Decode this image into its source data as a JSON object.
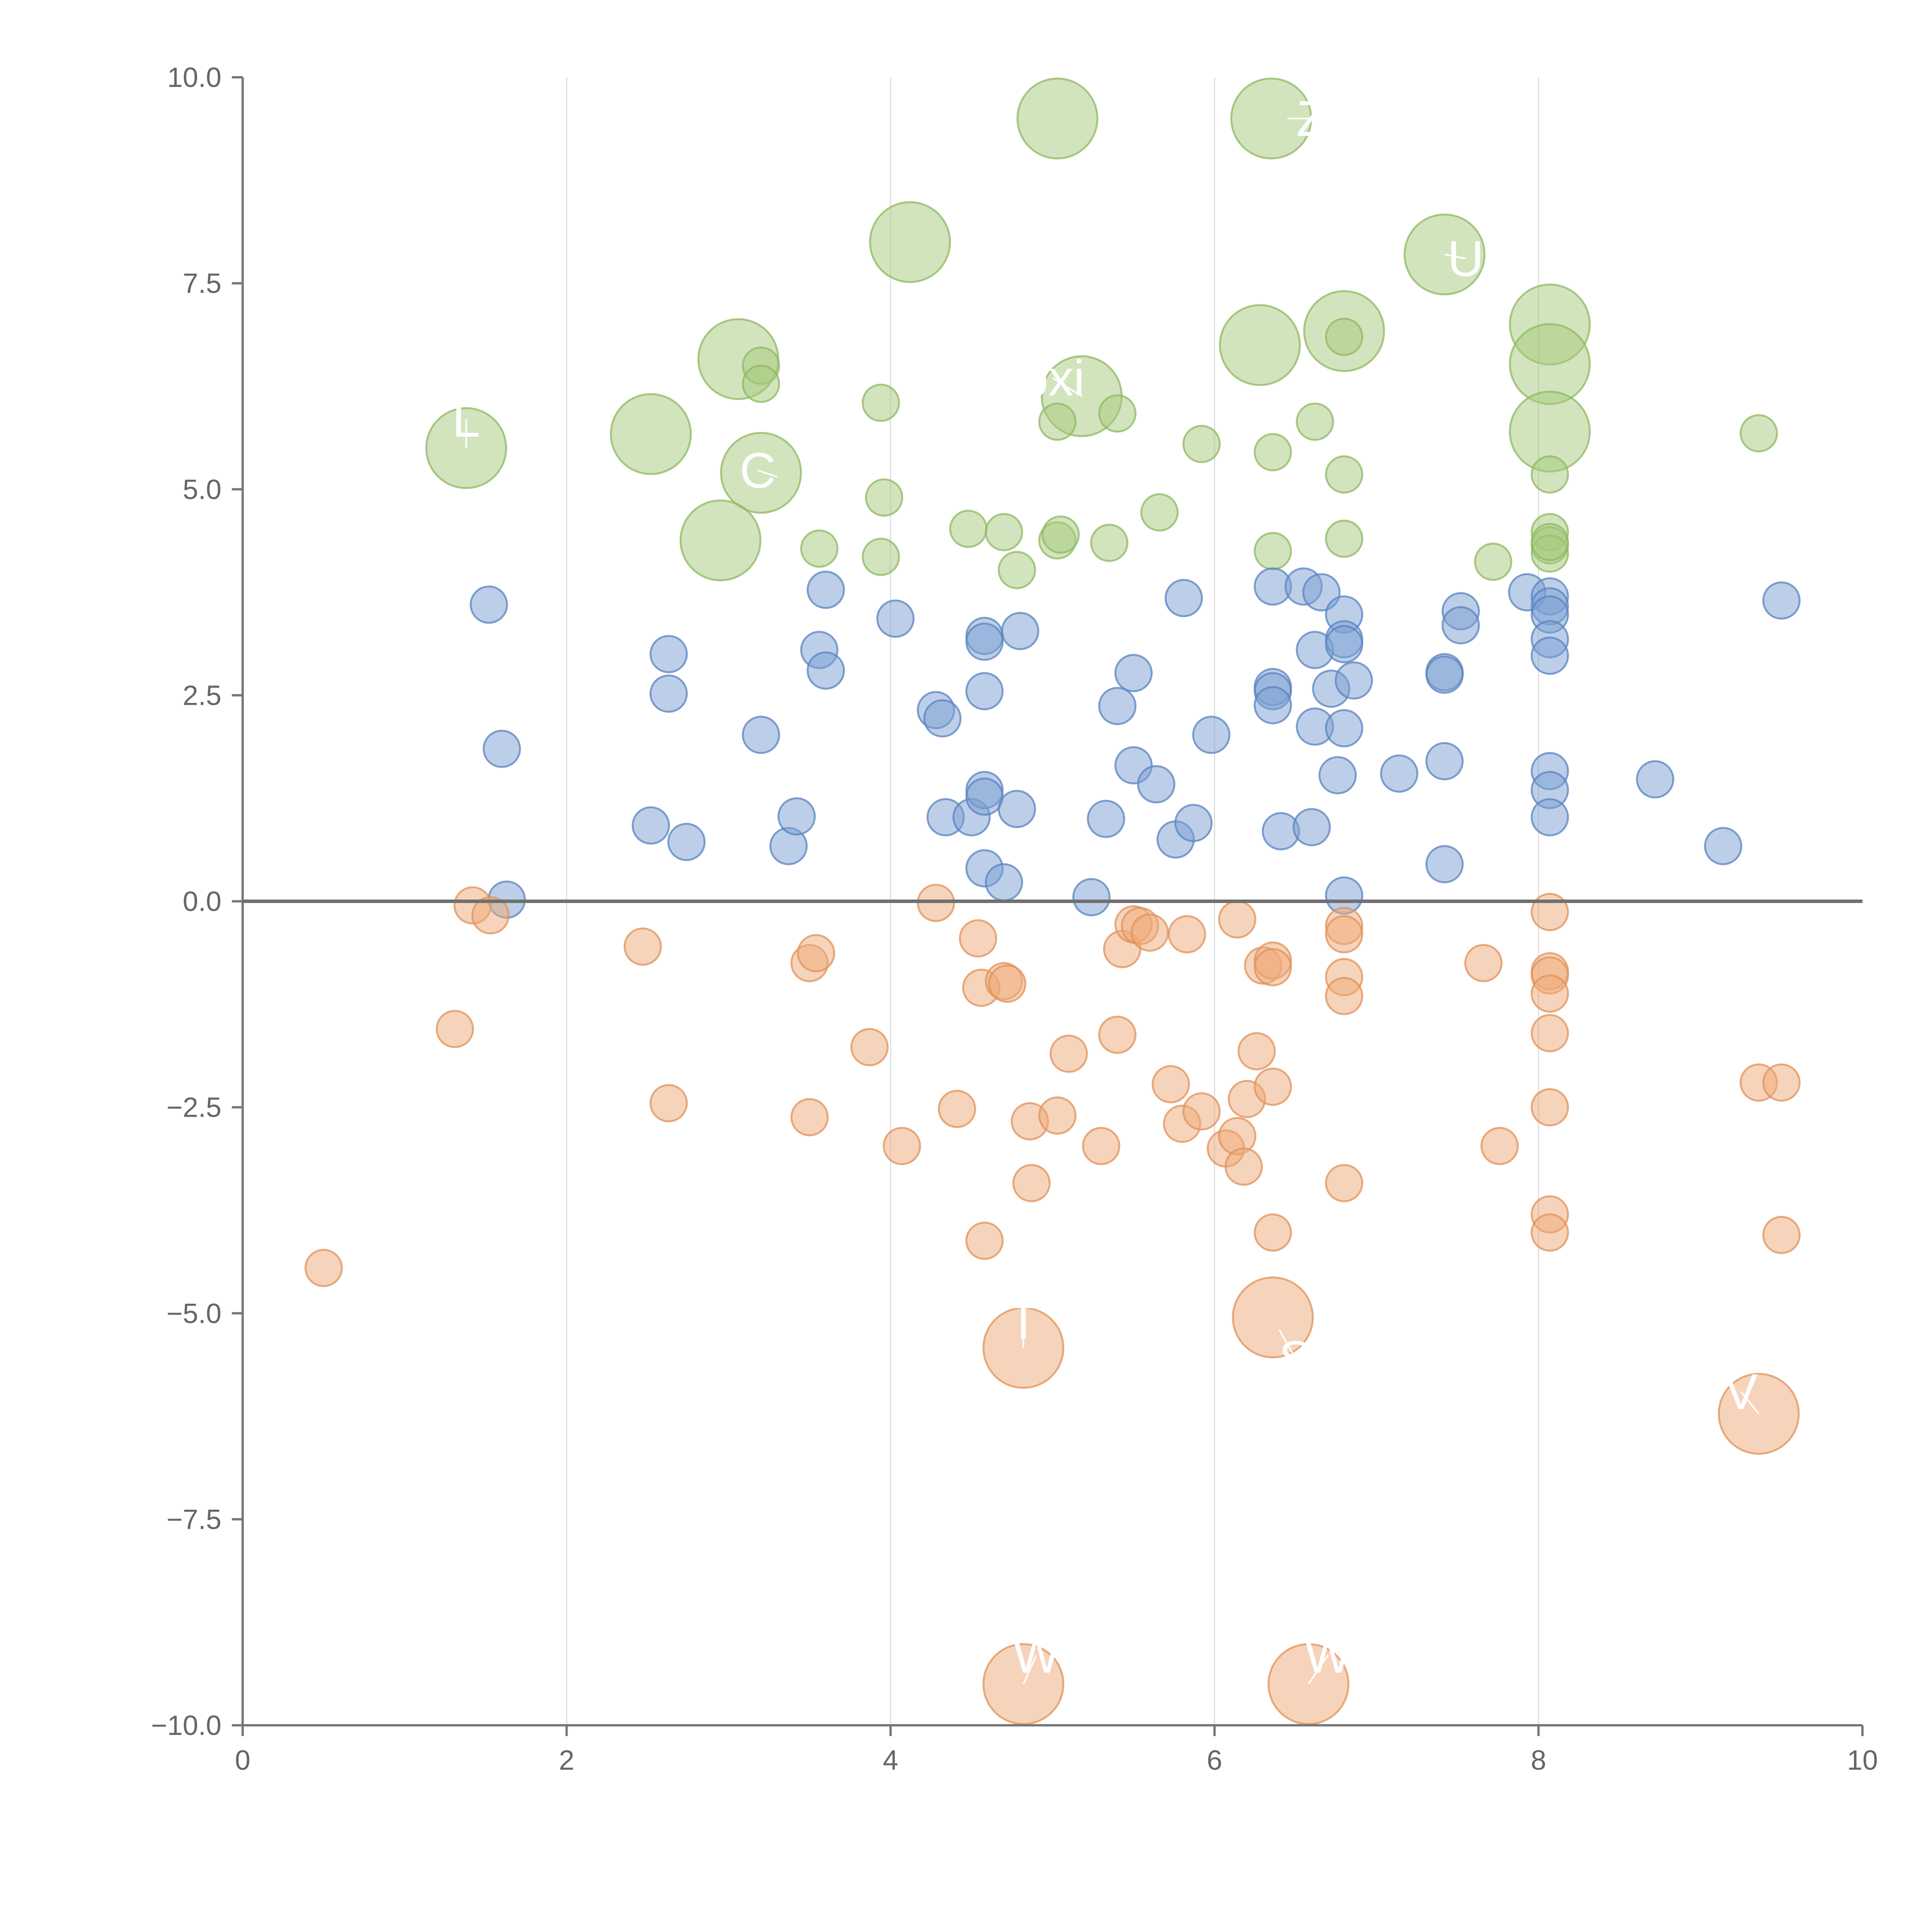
{
  "chart_data": {
    "type": "scatter",
    "title": "",
    "xlabel": "",
    "ylabel": "",
    "xlim": [
      0,
      10
    ],
    "ylim": [
      -10,
      10
    ],
    "grid": {
      "x": true,
      "y": false
    },
    "x_ticks": [
      0,
      2,
      4,
      6,
      8,
      10
    ],
    "x_tick_labels": [
      "0",
      "2",
      "4",
      "6",
      "8",
      "10"
    ],
    "y_ticks": [
      -10,
      -7.5,
      -5,
      -2.5,
      0,
      2.5,
      5,
      7.5,
      10
    ],
    "y_tick_labels": [
      "−10.0",
      "−7.5",
      "−5.0",
      "−2.5",
      "0.0",
      "2.5",
      "5.0",
      "7.5",
      "10.0"
    ],
    "zero_line": 0,
    "colors": {
      "green": "#a6c97c",
      "blue": "#7b9fd2",
      "orange": "#eea978",
      "green_stroke": "#8fb862",
      "blue_stroke": "#5a83c0",
      "orange_stroke": "#e0915a"
    },
    "series": [
      {
        "name": "green",
        "color": "#a6c97c",
        "points": [
          [
            5.03,
            9.5,
            2.2
          ],
          [
            6.35,
            9.5,
            2.2
          ],
          [
            4.12,
            8.0,
            2.2
          ],
          [
            7.42,
            7.85,
            2.2
          ],
          [
            6.8,
            6.92,
            2.2
          ],
          [
            8.07,
            7.0,
            2.2
          ],
          [
            6.28,
            6.75,
            2.2
          ],
          [
            8.07,
            6.52,
            2.2
          ],
          [
            3.06,
            6.58,
            2.2
          ],
          [
            5.18,
            6.13,
            2.2
          ],
          [
            2.52,
            5.67,
            2.2
          ],
          [
            8.07,
            5.7,
            2.2
          ],
          [
            1.38,
            5.5,
            2.2
          ],
          [
            3.2,
            5.2,
            2.2
          ],
          [
            2.95,
            4.38,
            2.2
          ],
          [
            3.2,
            6.5,
            1.0
          ],
          [
            3.2,
            6.28,
            1.0
          ],
          [
            3.94,
            6.05,
            1.0
          ],
          [
            5.03,
            5.82,
            1.0
          ],
          [
            5.4,
            5.92,
            1.0
          ],
          [
            6.62,
            5.82,
            1.0
          ],
          [
            5.92,
            5.55,
            1.0
          ],
          [
            6.36,
            5.45,
            1.0
          ],
          [
            6.8,
            5.18,
            1.0
          ],
          [
            8.07,
            5.18,
            1.0
          ],
          [
            9.36,
            5.68,
            1.0
          ],
          [
            3.96,
            4.9,
            1.0
          ],
          [
            4.78,
            4.02,
            1.0
          ],
          [
            5.66,
            4.72,
            1.0
          ],
          [
            4.48,
            4.52,
            1.0
          ],
          [
            4.7,
            4.48,
            1.0
          ],
          [
            5.03,
            4.38,
            1.0
          ],
          [
            5.05,
            4.45,
            1.0
          ],
          [
            5.35,
            4.35,
            1.0
          ],
          [
            3.56,
            4.28,
            1.0
          ],
          [
            3.94,
            4.18,
            1.0
          ],
          [
            6.36,
            4.25,
            1.0
          ],
          [
            6.8,
            4.4,
            1.0
          ],
          [
            7.72,
            4.12,
            1.0
          ],
          [
            8.07,
            4.48,
            1.0
          ],
          [
            8.07,
            4.32,
            1.0
          ],
          [
            8.07,
            4.22,
            1.0
          ],
          [
            8.07,
            4.36,
            1.0
          ],
          [
            6.8,
            6.85,
            1.0
          ]
        ]
      },
      {
        "name": "blue",
        "color": "#7b9fd2",
        "points": [
          [
            1.52,
            3.6,
            1.0
          ],
          [
            1.6,
            1.85,
            1.0
          ],
          [
            1.63,
            0.02,
            1.0
          ],
          [
            2.52,
            0.92,
            1.0
          ],
          [
            2.63,
            3.0,
            1.0
          ],
          [
            2.63,
            2.52,
            1.0
          ],
          [
            2.74,
            0.72,
            1.0
          ],
          [
            3.2,
            2.02,
            1.0
          ],
          [
            3.37,
            0.67,
            1.0
          ],
          [
            3.42,
            1.03,
            1.0
          ],
          [
            3.56,
            3.05,
            1.0
          ],
          [
            3.6,
            3.78,
            1.0
          ],
          [
            3.6,
            2.8,
            1.0
          ],
          [
            4.03,
            3.43,
            1.0
          ],
          [
            4.28,
            2.32,
            1.0
          ],
          [
            4.32,
            2.22,
            1.0
          ],
          [
            4.34,
            1.02,
            1.0
          ],
          [
            4.5,
            1.02,
            1.0
          ],
          [
            4.58,
            3.22,
            1.0
          ],
          [
            4.58,
            3.15,
            1.0
          ],
          [
            4.58,
            2.55,
            1.0
          ],
          [
            4.58,
            1.35,
            1.0
          ],
          [
            4.58,
            1.27,
            1.0
          ],
          [
            4.58,
            0.4,
            1.0
          ],
          [
            4.7,
            0.23,
            1.0
          ],
          [
            4.78,
            1.12,
            1.0
          ],
          [
            4.8,
            3.28,
            1.0
          ],
          [
            5.24,
            0.05,
            1.0
          ],
          [
            5.33,
            1.0,
            1.0
          ],
          [
            5.4,
            2.37,
            1.0
          ],
          [
            5.5,
            2.77,
            1.0
          ],
          [
            5.5,
            1.65,
            1.0
          ],
          [
            5.64,
            1.42,
            1.0
          ],
          [
            5.76,
            0.75,
            1.0
          ],
          [
            5.81,
            3.68,
            1.0
          ],
          [
            5.87,
            0.95,
            1.0
          ],
          [
            5.98,
            2.02,
            1.0
          ],
          [
            6.36,
            3.82,
            1.0
          ],
          [
            6.36,
            2.6,
            1.0
          ],
          [
            6.36,
            2.55,
            1.0
          ],
          [
            6.36,
            2.38,
            1.0
          ],
          [
            6.41,
            0.85,
            1.0
          ],
          [
            6.55,
            3.82,
            1.0
          ],
          [
            6.6,
            0.9,
            1.0
          ],
          [
            6.62,
            3.05,
            1.0
          ],
          [
            6.62,
            2.12,
            1.0
          ],
          [
            6.66,
            3.75,
            1.0
          ],
          [
            6.72,
            2.58,
            1.0
          ],
          [
            6.76,
            1.53,
            1.0
          ],
          [
            6.8,
            3.48,
            1.0
          ],
          [
            6.8,
            3.18,
            1.0
          ],
          [
            6.8,
            3.12,
            1.0
          ],
          [
            6.8,
            2.1,
            1.0
          ],
          [
            6.8,
            0.07,
            1.0
          ],
          [
            6.86,
            2.68,
            1.0
          ],
          [
            7.14,
            1.55,
            1.0
          ],
          [
            7.42,
            2.78,
            1.0
          ],
          [
            7.42,
            2.75,
            1.0
          ],
          [
            7.42,
            1.7,
            1.0
          ],
          [
            7.42,
            0.45,
            1.0
          ],
          [
            7.52,
            3.52,
            1.0
          ],
          [
            7.52,
            3.35,
            1.0
          ],
          [
            7.93,
            3.75,
            1.0
          ],
          [
            8.07,
            3.7,
            1.0
          ],
          [
            8.07,
            3.58,
            1.0
          ],
          [
            8.07,
            3.48,
            1.0
          ],
          [
            8.07,
            3.18,
            1.0
          ],
          [
            8.07,
            2.98,
            1.0
          ],
          [
            8.07,
            1.58,
            1.0
          ],
          [
            8.07,
            1.35,
            1.0
          ],
          [
            8.07,
            1.02,
            1.0
          ],
          [
            8.72,
            1.48,
            1.0
          ],
          [
            9.14,
            0.67,
            1.0
          ],
          [
            9.5,
            3.65,
            1.0
          ]
        ]
      },
      {
        "name": "orange",
        "color": "#eea978",
        "points": [
          [
            0.5,
            -4.45,
            1.0
          ],
          [
            1.31,
            -1.55,
            1.0
          ],
          [
            1.42,
            -0.05,
            1.0
          ],
          [
            1.53,
            -0.17,
            1.0
          ],
          [
            2.47,
            -0.55,
            1.0
          ],
          [
            2.63,
            -2.45,
            1.0
          ],
          [
            3.5,
            -2.62,
            1.0
          ],
          [
            3.5,
            -0.75,
            1.0
          ],
          [
            3.54,
            -0.63,
            1.0
          ],
          [
            3.87,
            -1.77,
            1.0
          ],
          [
            4.07,
            -2.97,
            1.0
          ],
          [
            4.28,
            -0.02,
            1.0
          ],
          [
            4.41,
            -2.52,
            1.0
          ],
          [
            4.54,
            -0.45,
            1.0
          ],
          [
            4.56,
            -1.05,
            1.0
          ],
          [
            4.58,
            -4.12,
            1.0
          ],
          [
            4.7,
            -0.97,
            1.0
          ],
          [
            4.72,
            -1.0,
            1.0
          ],
          [
            4.86,
            -2.67,
            1.0
          ],
          [
            4.87,
            -3.42,
            1.0
          ],
          [
            5.03,
            -2.6,
            1.0
          ],
          [
            5.1,
            -1.85,
            1.0
          ],
          [
            5.3,
            -2.97,
            1.0
          ],
          [
            5.4,
            -1.62,
            1.0
          ],
          [
            5.43,
            -0.58,
            1.0
          ],
          [
            5.5,
            -0.28,
            1.0
          ],
          [
            5.54,
            -0.3,
            1.0
          ],
          [
            5.6,
            -0.38,
            1.0
          ],
          [
            5.73,
            -2.22,
            1.0
          ],
          [
            5.8,
            -2.7,
            1.0
          ],
          [
            5.83,
            -0.4,
            1.0
          ],
          [
            5.92,
            -2.55,
            1.0
          ],
          [
            6.07,
            -3.0,
            1.0
          ],
          [
            6.14,
            -0.22,
            1.0
          ],
          [
            6.14,
            -2.85,
            1.0
          ],
          [
            6.18,
            -3.22,
            1.0
          ],
          [
            6.2,
            -2.4,
            1.0
          ],
          [
            6.26,
            -1.82,
            1.0
          ],
          [
            6.3,
            -0.78,
            1.0
          ],
          [
            6.36,
            -0.72,
            1.0
          ],
          [
            6.36,
            -0.8,
            1.0
          ],
          [
            6.36,
            -2.25,
            1.0
          ],
          [
            6.36,
            -4.02,
            1.0
          ],
          [
            6.8,
            -0.3,
            1.0
          ],
          [
            6.8,
            -0.4,
            1.0
          ],
          [
            6.8,
            -0.92,
            1.0
          ],
          [
            6.8,
            -1.15,
            1.0
          ],
          [
            6.8,
            -3.42,
            1.0
          ],
          [
            7.66,
            -0.75,
            1.0
          ],
          [
            7.76,
            -2.97,
            1.0
          ],
          [
            8.07,
            -0.13,
            1.0
          ],
          [
            8.07,
            -0.85,
            1.0
          ],
          [
            8.07,
            -0.9,
            1.0
          ],
          [
            8.07,
            -1.12,
            1.0
          ],
          [
            8.07,
            -1.6,
            1.0
          ],
          [
            8.07,
            -2.5,
            1.0
          ],
          [
            8.07,
            -3.8,
            1.0
          ],
          [
            8.07,
            -4.02,
            1.0
          ],
          [
            9.36,
            -2.2,
            1.0
          ],
          [
            9.5,
            -2.2,
            1.0
          ],
          [
            9.5,
            -4.05,
            1.0
          ],
          [
            4.82,
            -5.42,
            2.2
          ],
          [
            6.36,
            -5.05,
            2.2
          ],
          [
            9.36,
            -6.22,
            2.2
          ],
          [
            4.82,
            -9.5,
            2.2
          ],
          [
            6.58,
            -9.5,
            2.2
          ]
        ]
      }
    ],
    "annotations": [
      {
        "text": "Z",
        "x": 6.6,
        "y": 9.5,
        "anchor_x": 6.45,
        "anchor_y": 9.5
      },
      {
        "text": "U",
        "x": 7.55,
        "y": 7.8,
        "anchor_x": 7.42,
        "anchor_y": 7.85
      },
      {
        "text": "bxi",
        "x": 5.0,
        "y": 6.35,
        "anchor_x": 5.18,
        "anchor_y": 6.13
      },
      {
        "text": "C",
        "x": 3.18,
        "y": 5.23,
        "anchor_x": 3.3,
        "anchor_y": 5.15
      },
      {
        "text": "L",
        "x": 1.38,
        "y": 5.85,
        "anchor_x": 1.38,
        "anchor_y": 5.5
      },
      {
        "text": "T",
        "x": 4.82,
        "y": -5.1,
        "anchor_x": 4.82,
        "anchor_y": -5.42
      },
      {
        "text": "S",
        "x": 6.5,
        "y": -5.55,
        "anchor_x": 6.4,
        "anchor_y": -5.2
      },
      {
        "text": "V",
        "x": 9.25,
        "y": -5.95,
        "anchor_x": 9.36,
        "anchor_y": -6.22
      },
      {
        "text": "W",
        "x": 4.9,
        "y": -9.15,
        "anchor_x": 4.82,
        "anchor_y": -9.5
      },
      {
        "text": "W",
        "x": 6.7,
        "y": -9.15,
        "anchor_x": 6.58,
        "anchor_y": -9.5
      }
    ]
  }
}
